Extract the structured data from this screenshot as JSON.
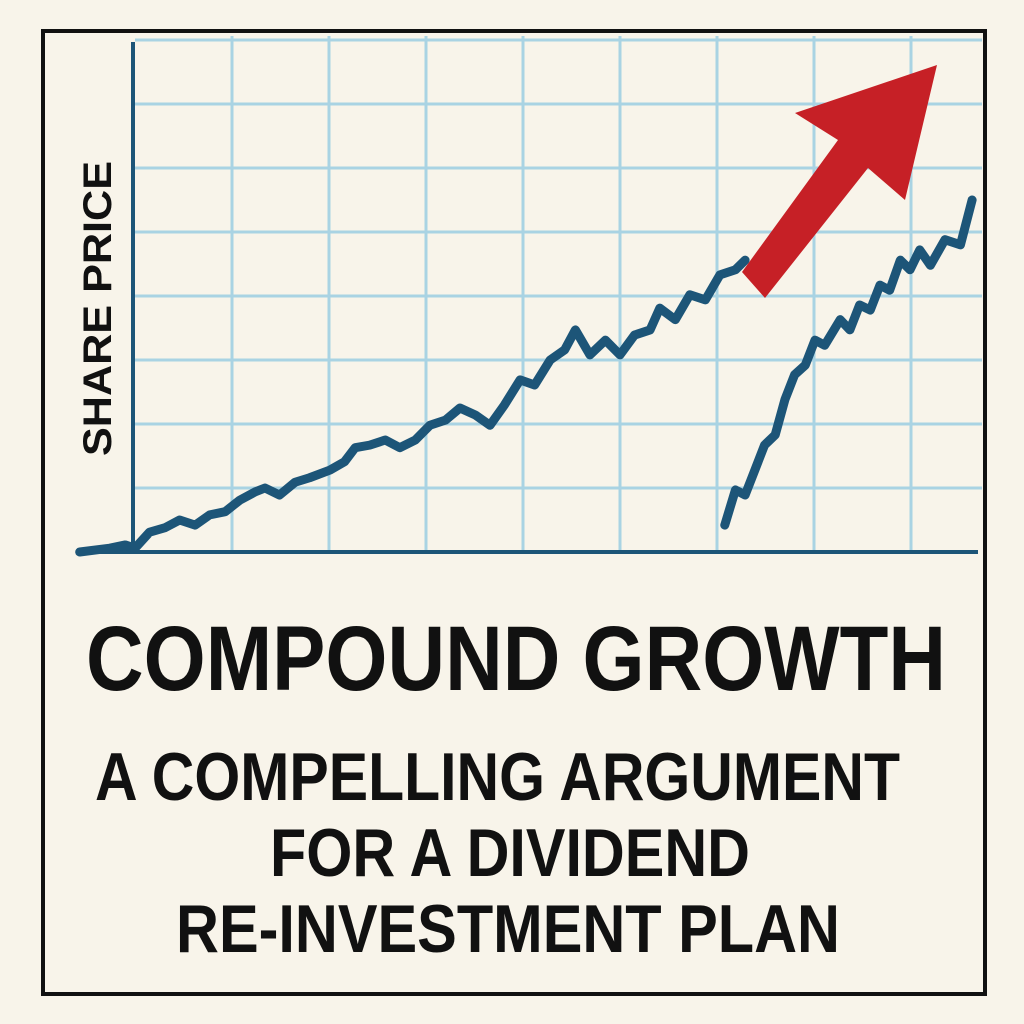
{
  "colors": {
    "background": "#f8f4ea",
    "frame": "#111111",
    "grid": "#a9d3e3",
    "line": "#1d5578",
    "arrow": "#c62026"
  },
  "poster": {
    "title": "COMPOUND GROWTH",
    "subtitle_lines": [
      "A COMPELLING ARGUMENT",
      "FOR A DIVIDEND",
      "RE-INVESTMENT PLAN"
    ]
  },
  "chart_data": {
    "type": "line",
    "title": "",
    "xlabel": "",
    "ylabel": "SHARE PRICE",
    "grid": true,
    "xlim": [
      -0.6,
      8.8
    ],
    "ylim": [
      0,
      8
    ],
    "annotations": [
      {
        "type": "arrow",
        "color": "#c62026",
        "direction": "up-right"
      }
    ],
    "series": [
      {
        "x": [
          -0.57,
          -0.26,
          -0.1,
          0,
          0.15,
          0.31,
          0.46,
          0.62,
          0.77,
          0.93,
          1.08,
          1.24,
          1.34,
          1.49,
          1.65,
          1.8,
          2.01,
          2.16,
          2.27,
          2.42,
          2.58,
          2.73,
          2.89,
          3.04,
          3.2,
          3.35,
          3.51,
          3.66,
          3.81,
          3.97,
          4.12,
          4.28,
          4.43,
          4.54,
          4.69,
          4.85,
          5.0,
          5.15,
          5.31,
          5.41,
          5.57,
          5.72,
          5.88,
          6.03,
          6.19,
          6.29
        ],
        "y": [
          0,
          0.06,
          0.11,
          0.06,
          0.31,
          0.38,
          0.5,
          0.42,
          0.58,
          0.63,
          0.81,
          0.94,
          1.0,
          0.89,
          1.09,
          1.16,
          1.28,
          1.41,
          1.63,
          1.67,
          1.75,
          1.63,
          1.75,
          1.98,
          2.06,
          2.25,
          2.14,
          1.98,
          2.3,
          2.69,
          2.61,
          3.0,
          3.16,
          3.47,
          3.08,
          3.31,
          3.08,
          3.39,
          3.47,
          3.81,
          3.63,
          4.02,
          3.94,
          4.33,
          4.41,
          4.56
        ]
      },
      {
        "x": [
          6.08,
          6.19,
          6.29,
          6.39,
          6.49,
          6.6,
          6.7,
          6.8,
          6.91,
          7.01,
          7.11,
          7.27,
          7.37,
          7.47,
          7.58,
          7.68,
          7.78,
          7.89,
          7.99,
          8.09,
          8.2,
          8.35,
          8.51,
          8.63
        ],
        "y": [
          0.42,
          0.97,
          0.89,
          1.28,
          1.67,
          1.83,
          2.38,
          2.77,
          2.92,
          3.31,
          3.23,
          3.63,
          3.47,
          3.86,
          3.78,
          4.17,
          4.09,
          4.56,
          4.41,
          4.72,
          4.48,
          4.88,
          4.8,
          5.5
        ]
      }
    ]
  }
}
